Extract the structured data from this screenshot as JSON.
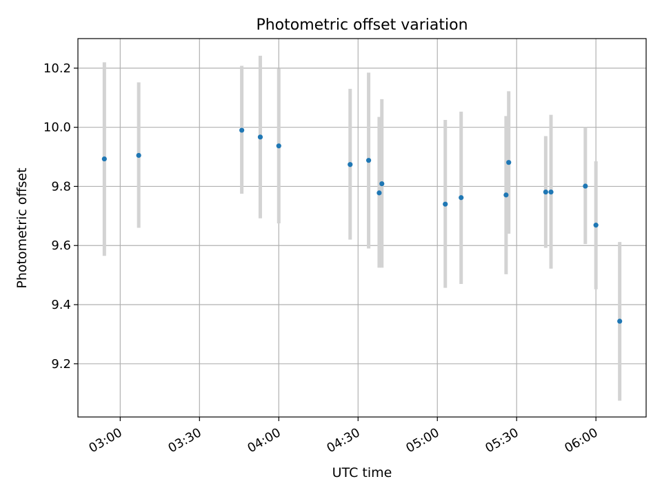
{
  "chart_data": {
    "type": "scatter",
    "title": "Photometric offset variation",
    "xlabel": "UTC time",
    "ylabel": "Photometric offset",
    "xlim": [
      "02:44",
      "06:19"
    ],
    "ylim": [
      9.02,
      10.3
    ],
    "grid": true,
    "x_ticks": [
      "03:00",
      "03:30",
      "04:00",
      "04:30",
      "05:00",
      "05:30",
      "06:00"
    ],
    "y_ticks": [
      "9.2",
      "9.4",
      "9.6",
      "9.8",
      "10.0",
      "10.2"
    ],
    "point_color": "#1f77b4",
    "errorbar_color": "#d3d3d3",
    "points": [
      {
        "time": "02:54",
        "y": 9.893,
        "err_low": 9.565,
        "err_high": 10.22
      },
      {
        "time": "03:07",
        "y": 9.905,
        "err_low": 9.66,
        "err_high": 10.152
      },
      {
        "time": "03:46",
        "y": 9.99,
        "err_low": 9.775,
        "err_high": 10.208
      },
      {
        "time": "03:53",
        "y": 9.967,
        "err_low": 9.692,
        "err_high": 10.242
      },
      {
        "time": "04:00",
        "y": 9.937,
        "err_low": 9.675,
        "err_high": 10.198
      },
      {
        "time": "04:27",
        "y": 9.874,
        "err_low": 9.62,
        "err_high": 10.13
      },
      {
        "time": "04:34",
        "y": 9.888,
        "err_low": 9.59,
        "err_high": 10.185
      },
      {
        "time": "04:38",
        "y": 9.778,
        "err_low": 9.525,
        "err_high": 10.035
      },
      {
        "time": "04:39",
        "y": 9.809,
        "err_low": 9.525,
        "err_high": 10.095
      },
      {
        "time": "05:03",
        "y": 9.74,
        "err_low": 9.457,
        "err_high": 10.025
      },
      {
        "time": "05:09",
        "y": 9.762,
        "err_low": 9.47,
        "err_high": 10.053
      },
      {
        "time": "05:26",
        "y": 9.771,
        "err_low": 9.503,
        "err_high": 10.038
      },
      {
        "time": "05:27",
        "y": 9.881,
        "err_low": 9.64,
        "err_high": 10.122
      },
      {
        "time": "05:41",
        "y": 9.781,
        "err_low": 9.592,
        "err_high": 9.97
      },
      {
        "time": "05:43",
        "y": 9.781,
        "err_low": 9.522,
        "err_high": 10.042
      },
      {
        "time": "05:56",
        "y": 9.801,
        "err_low": 9.605,
        "err_high": 10.0
      },
      {
        "time": "06:00",
        "y": 9.669,
        "err_low": 9.452,
        "err_high": 9.885
      },
      {
        "time": "06:09",
        "y": 9.344,
        "err_low": 9.075,
        "err_high": 9.612
      }
    ]
  }
}
